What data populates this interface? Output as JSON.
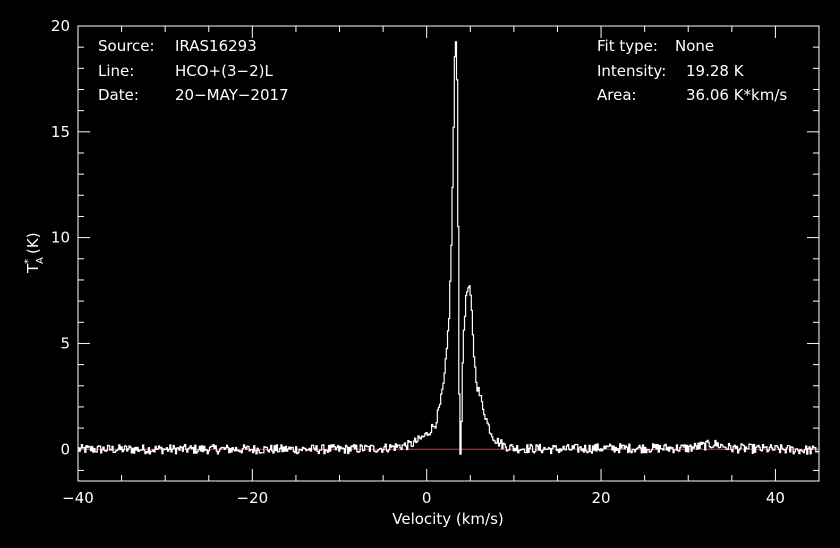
{
  "chart_data": {
    "type": "line",
    "xlabel": "Velocity (km/s)",
    "ylabel_main": "T",
    "ylabel_sup": "*",
    "ylabel_sub": "A",
    "ylabel_unit": "(K)",
    "xlim": [
      -40,
      45
    ],
    "ylim": [
      -1.5,
      20
    ],
    "x_ticks": [
      -40,
      -20,
      0,
      20,
      40
    ],
    "x_tick_labels": [
      "−40",
      "−20",
      "0",
      "20",
      "40"
    ],
    "y_ticks": [
      0,
      5,
      10,
      15,
      20
    ],
    "y_tick_labels": [
      "0",
      "5",
      "10",
      "15",
      "20"
    ],
    "baseline": {
      "value": 0,
      "color": "#ff2a2a"
    },
    "series": [
      {
        "color": "#ffffff",
        "style": "histogram",
        "x": [
          -40,
          -30,
          -20,
          -10,
          -5,
          -2,
          -1,
          0,
          1,
          1.5,
          2,
          2.3,
          2.6,
          2.8,
          3.0,
          3.15,
          3.25,
          3.35,
          3.45,
          3.55,
          3.65,
          3.75,
          3.85,
          3.95,
          4.05,
          4.15,
          4.3,
          4.5,
          4.7,
          4.9,
          5.1,
          5.3,
          5.5,
          5.8,
          6.2,
          6.6,
          7.0,
          7.5,
          8,
          9,
          10,
          15,
          20,
          30,
          33,
          35,
          40,
          45
        ],
        "y": [
          0,
          0,
          0,
          0,
          0.05,
          0.2,
          0.4,
          0.7,
          1.2,
          2.0,
          3.2,
          4.6,
          6.5,
          9.0,
          13.0,
          16.5,
          19.0,
          19.28,
          19.1,
          15.0,
          8.0,
          2.5,
          -0.1,
          0.0,
          2.0,
          4.5,
          6.0,
          7.0,
          7.6,
          7.55,
          7.0,
          5.5,
          4.0,
          3.0,
          2.4,
          1.8,
          1.2,
          0.7,
          0.4,
          0.15,
          0.05,
          0.0,
          0.05,
          0.05,
          0.25,
          0.05,
          0.0,
          -0.05
        ]
      }
    ]
  },
  "info": {
    "source_label": "Source:",
    "source_value": "IRAS16293",
    "line_label": "Line:",
    "line_value": "HCO+(3−2)L",
    "date_label": "Date:",
    "date_value": "20−MAY−2017",
    "fit_label": "Fit type:",
    "fit_value": "None",
    "intensity_label": "Intensity:",
    "intensity_value": "19.28 K",
    "area_label": "Area:",
    "area_value": "36.06 K*km/s"
  }
}
